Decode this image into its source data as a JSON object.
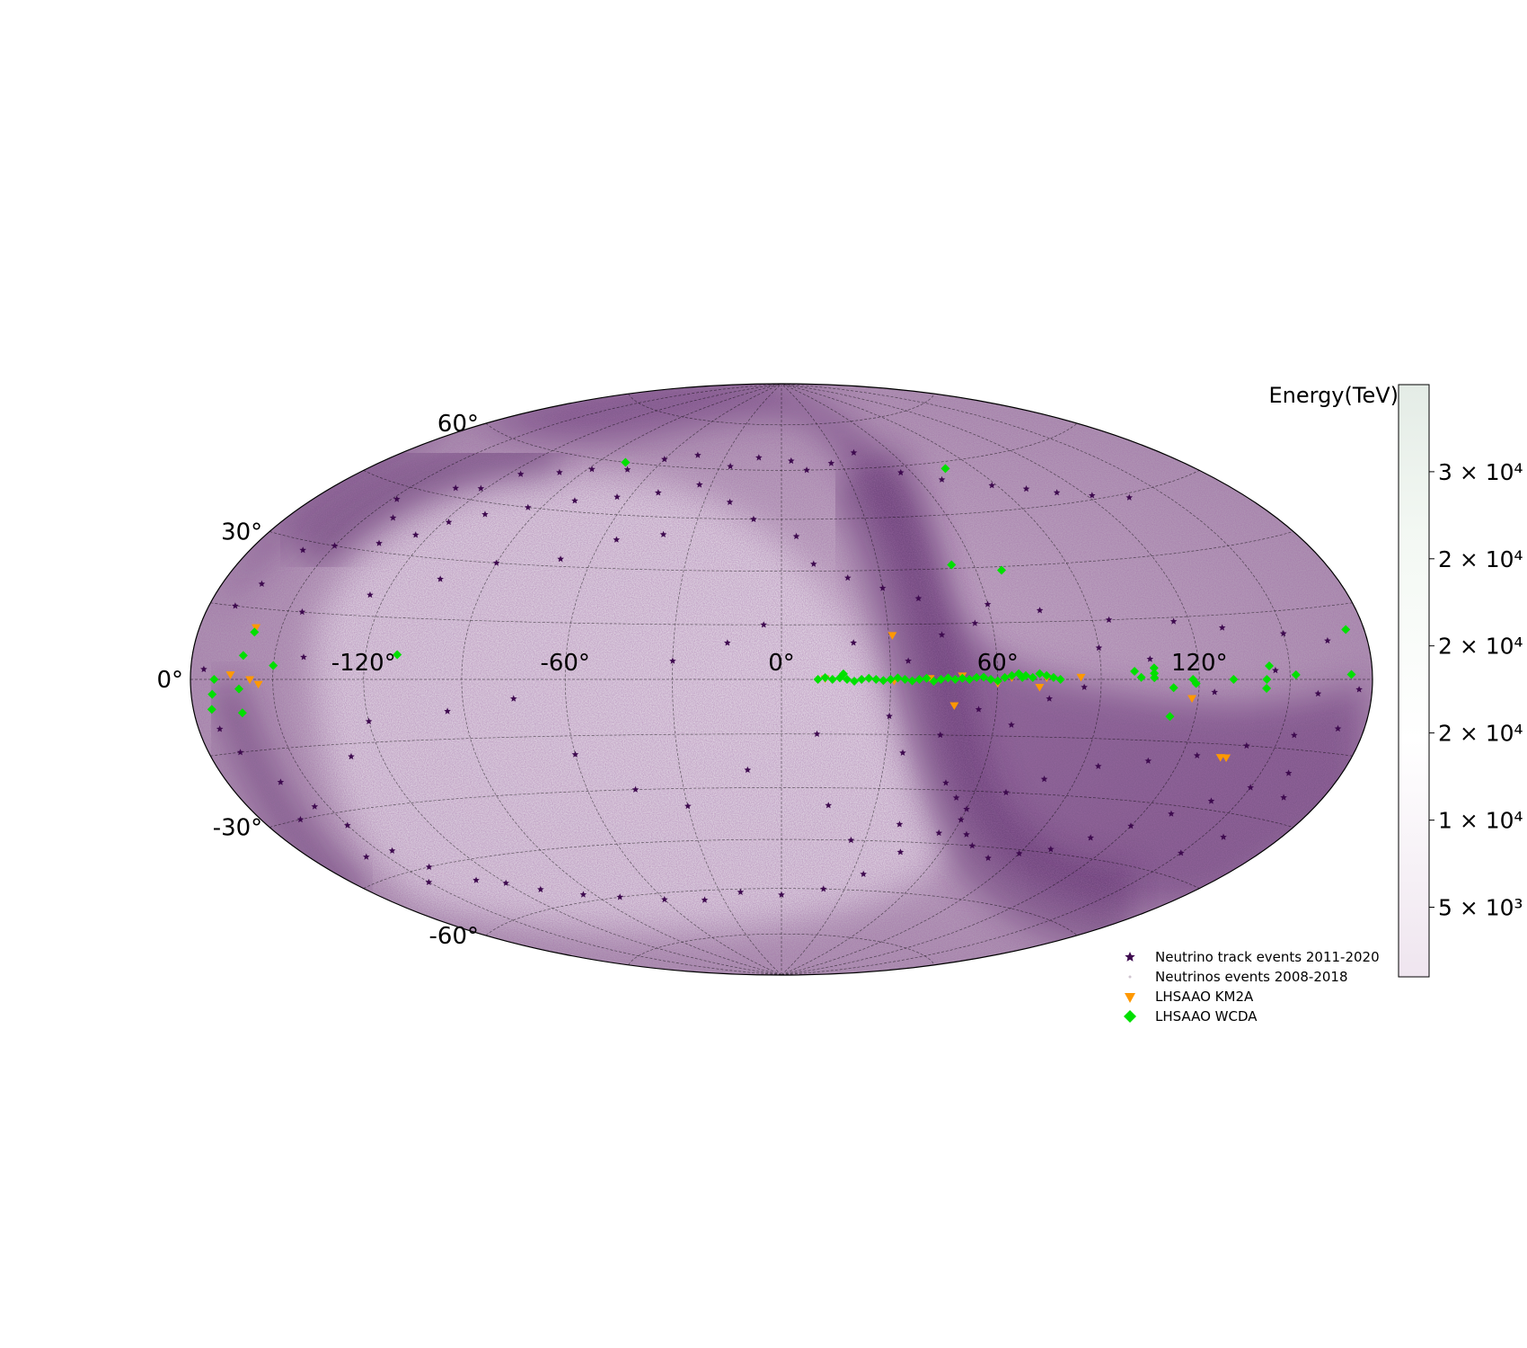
{
  "chart_data": {
    "type": "scatter",
    "projection": "hammer-aitoff",
    "xlabel": "",
    "ylabel": "",
    "xlim": [
      -180,
      180
    ],
    "ylim": [
      -90,
      90
    ],
    "grid": true,
    "lon_ticks": [
      {
        "value": -120,
        "label": "-120°"
      },
      {
        "value": -60,
        "label": "-60°"
      },
      {
        "value": 0,
        "label": "0°"
      },
      {
        "value": 60,
        "label": "60°"
      },
      {
        "value": 120,
        "label": "120°"
      }
    ],
    "lat_ticks": [
      {
        "value": 60,
        "label": "60°"
      },
      {
        "value": 30,
        "label": "30°"
      },
      {
        "value": 0,
        "label": "0°"
      },
      {
        "value": -30,
        "label": "-30°"
      },
      {
        "value": -60,
        "label": "-60°"
      }
    ],
    "colorbar": {
      "title": "Energy(TeV)",
      "ticks": [
        {
          "label": "5 × 10³",
          "value": 5000
        },
        {
          "label": "1 × 10⁴",
          "value": 10000
        },
        {
          "label": "2 × 10⁴",
          "value": 15000
        },
        {
          "label": "2 × 10⁴",
          "value": 20000
        },
        {
          "label": "2 × 10⁴",
          "value": 25000
        },
        {
          "label": "3 × 10⁴",
          "value": 30000
        }
      ],
      "range": [
        1000,
        35000
      ],
      "colors": [
        "#efe5ef",
        "#ffffff",
        "#f3f8f3",
        "#e4ece6"
      ]
    },
    "legend": {
      "placement": "lower-right",
      "items": [
        {
          "label": "Neutrino track events 2011-2020",
          "marker": "star",
          "color": "#3e0a4f"
        },
        {
          "label": "Neutrinos events 2008-2018",
          "marker": "dot",
          "color": "#cfc4cf"
        },
        {
          "label": "LHSAAO KM2A",
          "marker": "triangle-down",
          "color": "#ff9800"
        },
        {
          "label": "LHSAAO WCDA",
          "marker": "diamond",
          "color": "#00e000"
        }
      ]
    },
    "series": [
      {
        "name": "LHSAAO WCDA",
        "marker": "diamond",
        "color": "#00e000",
        "points": [
          [
            10,
            0
          ],
          [
            12,
            0.5
          ],
          [
            14,
            0
          ],
          [
            16,
            0.4
          ],
          [
            18,
            0
          ],
          [
            20,
            -0.5
          ],
          [
            22,
            0
          ],
          [
            24,
            0.3
          ],
          [
            26,
            0
          ],
          [
            28,
            -0.3
          ],
          [
            30,
            0
          ],
          [
            32,
            0.4
          ],
          [
            34,
            0
          ],
          [
            36,
            -0.4
          ],
          [
            38,
            0
          ],
          [
            40,
            0.3
          ],
          [
            42,
            -0.5
          ],
          [
            44,
            0
          ],
          [
            46,
            0.4
          ],
          [
            48,
            0
          ],
          [
            50,
            0.3
          ],
          [
            52,
            0
          ],
          [
            54,
            0.5
          ],
          [
            56,
            0.6
          ],
          [
            58,
            0
          ],
          [
            60,
            -0.4
          ],
          [
            62,
            0.5
          ],
          [
            64,
            1
          ],
          [
            66,
            1.5
          ],
          [
            67,
            0.5
          ],
          [
            68,
            1
          ],
          [
            70,
            0.5
          ],
          [
            72,
            1.5
          ],
          [
            74,
            1
          ],
          [
            76,
            0.5
          ],
          [
            78,
            0
          ],
          [
            17,
            1.5
          ],
          [
            68,
            29
          ],
          [
            53,
            31
          ],
          [
            100,
            2
          ],
          [
            102,
            0.5
          ],
          [
            106,
            0.4
          ],
          [
            106,
            1.5
          ],
          [
            106,
            2.8
          ],
          [
            112,
            -2
          ],
          [
            112,
            -9
          ],
          [
            119,
            -1
          ],
          [
            118,
            0
          ],
          [
            131,
            0
          ],
          [
            142,
            -2
          ],
          [
            142,
            0
          ],
          [
            143,
            3
          ],
          [
            152,
            1
          ],
          [
            172,
            1
          ],
          [
            173,
            10
          ],
          [
            -162,
            -2
          ],
          [
            -162,
            -7
          ],
          [
            -171,
            0
          ],
          [
            -172,
            -3
          ],
          [
            -173,
            -6
          ],
          [
            -150,
            3
          ],
          [
            -161,
            5
          ],
          [
            -159,
            10
          ],
          [
            -110,
            6
          ],
          [
            -77,
            60
          ],
          [
            77,
            58
          ]
        ]
      },
      {
        "name": "LHSAAO KM2A",
        "marker": "triangle-down",
        "color": "#ff9800",
        "points": [
          [
            12,
            0.2
          ],
          [
            31,
            -0.4
          ],
          [
            41,
            0.3
          ],
          [
            50,
            1
          ],
          [
            60,
            -1
          ],
          [
            64,
            0.5
          ],
          [
            72,
            -2
          ],
          [
            74,
            0.4
          ],
          [
            84,
            0.6
          ],
          [
            31,
            12
          ],
          [
            48,
            -7
          ],
          [
            118,
            -4.5
          ],
          [
            133,
            -18
          ],
          [
            135,
            -18
          ],
          [
            -158,
            0
          ],
          [
            -155,
            -1
          ],
          [
            -165,
            1
          ],
          [
            -159,
            11
          ]
        ]
      },
      {
        "name": "Neutrino track events 2011-2020",
        "marker": "star",
        "color": "#3e0a4f",
        "points": [
          [
            -148,
            42
          ],
          [
            -140,
            38
          ],
          [
            -132,
            47
          ],
          [
            -122,
            48
          ],
          [
            -115,
            53
          ],
          [
            -100,
            55
          ],
          [
            -88,
            57
          ],
          [
            -72,
            58
          ],
          [
            -60,
            62
          ],
          [
            -45,
            64
          ],
          [
            -25,
            61
          ],
          [
            -12,
            64
          ],
          [
            5,
            63
          ],
          [
            12,
            60
          ],
          [
            25,
            62
          ],
          [
            40,
            65
          ],
          [
            55,
            58
          ],
          [
            70,
            55
          ],
          [
            88,
            52
          ],
          [
            100,
            50
          ],
          [
            110,
            48
          ],
          [
            122,
            46
          ],
          [
            135,
            44
          ],
          [
            -160,
            28
          ],
          [
            -150,
            30
          ],
          [
            -135,
            32
          ],
          [
            -125,
            35
          ],
          [
            -118,
            39
          ],
          [
            -108,
            42
          ],
          [
            -95,
            45
          ],
          [
            -80,
            48
          ],
          [
            -65,
            50
          ],
          [
            -50,
            52
          ],
          [
            -35,
            55
          ],
          [
            -20,
            50
          ],
          [
            -10,
            45
          ],
          [
            5,
            40
          ],
          [
            10,
            32
          ],
          [
            20,
            28
          ],
          [
            30,
            25
          ],
          [
            40,
            22
          ],
          [
            60,
            20
          ],
          [
            75,
            18
          ],
          [
            95,
            15
          ],
          [
            115,
            14
          ],
          [
            130,
            12
          ],
          [
            150,
            10
          ],
          [
            165,
            8
          ],
          [
            -170,
            15
          ],
          [
            -165,
            20
          ],
          [
            -172,
            -10
          ],
          [
            -168,
            -15
          ],
          [
            -160,
            -22
          ],
          [
            -155,
            -28
          ],
          [
            -150,
            -33
          ],
          [
            -145,
            -40
          ],
          [
            -140,
            -45
          ],
          [
            -130,
            -50
          ],
          [
            -120,
            -52
          ],
          [
            -110,
            -55
          ],
          [
            -95,
            -58
          ],
          [
            -80,
            -60
          ],
          [
            -60,
            -62
          ],
          [
            -40,
            -63
          ],
          [
            -20,
            -61
          ],
          [
            0,
            -62
          ],
          [
            20,
            -60
          ],
          [
            35,
            -55
          ],
          [
            45,
            -48
          ],
          [
            55,
            -42
          ],
          [
            60,
            -35
          ],
          [
            70,
            -30
          ],
          [
            80,
            -26
          ],
          [
            95,
            -22
          ],
          [
            110,
            -20
          ],
          [
            125,
            -18
          ],
          [
            140,
            -15
          ],
          [
            155,
            -12
          ],
          [
            170,
            -10
          ],
          [
            50,
            -28
          ],
          [
            55,
            -32
          ],
          [
            60,
            -38
          ],
          [
            65,
            -42
          ],
          [
            70,
            -45
          ],
          [
            80,
            -48
          ],
          [
            90,
            -46
          ],
          [
            100,
            -44
          ],
          [
            110,
            -40
          ],
          [
            120,
            -36
          ],
          [
            130,
            -32
          ],
          [
            140,
            -28
          ],
          [
            150,
            -24
          ],
          [
            160,
            -20
          ],
          [
            -95,
            -8
          ],
          [
            -75,
            -5
          ],
          [
            -60,
            -20
          ],
          [
            -45,
            -30
          ],
          [
            -30,
            -35
          ],
          [
            -10,
            -25
          ],
          [
            10,
            -15
          ],
          [
            15,
            -35
          ],
          [
            25,
            -45
          ],
          [
            30,
            -10
          ],
          [
            35,
            -20
          ],
          [
            40,
            -40
          ],
          [
            45,
            -15
          ],
          [
            55,
            -8
          ],
          [
            65,
            -12
          ],
          [
            75,
            -5
          ],
          [
            85,
            -2
          ],
          [
            -120,
            -10
          ],
          [
            -130,
            -18
          ],
          [
            -140,
            5
          ],
          [
            -145,
            15
          ],
          [
            -125,
            20
          ],
          [
            -105,
            25
          ],
          [
            -90,
            30
          ],
          [
            -70,
            32
          ],
          [
            -55,
            38
          ],
          [
            -40,
            40
          ],
          [
            -30,
            5
          ],
          [
            -15,
            10
          ],
          [
            -5,
            15
          ],
          [
            20,
            10
          ],
          [
            35,
            5
          ],
          [
            45,
            12
          ],
          [
            55,
            15
          ],
          [
            90,
            8
          ],
          [
            105,
            5
          ],
          [
            125,
            -3
          ],
          [
            145,
            2
          ],
          [
            160,
            -3
          ],
          [
            -175,
            2
          ],
          [
            175,
            -2
          ],
          [
            -165,
            -30
          ],
          [
            -158,
            -40
          ],
          [
            -150,
            -48
          ],
          [
            165,
            -25
          ],
          [
            158,
            -35
          ],
          [
            150,
            -40
          ]
        ]
      }
    ]
  }
}
